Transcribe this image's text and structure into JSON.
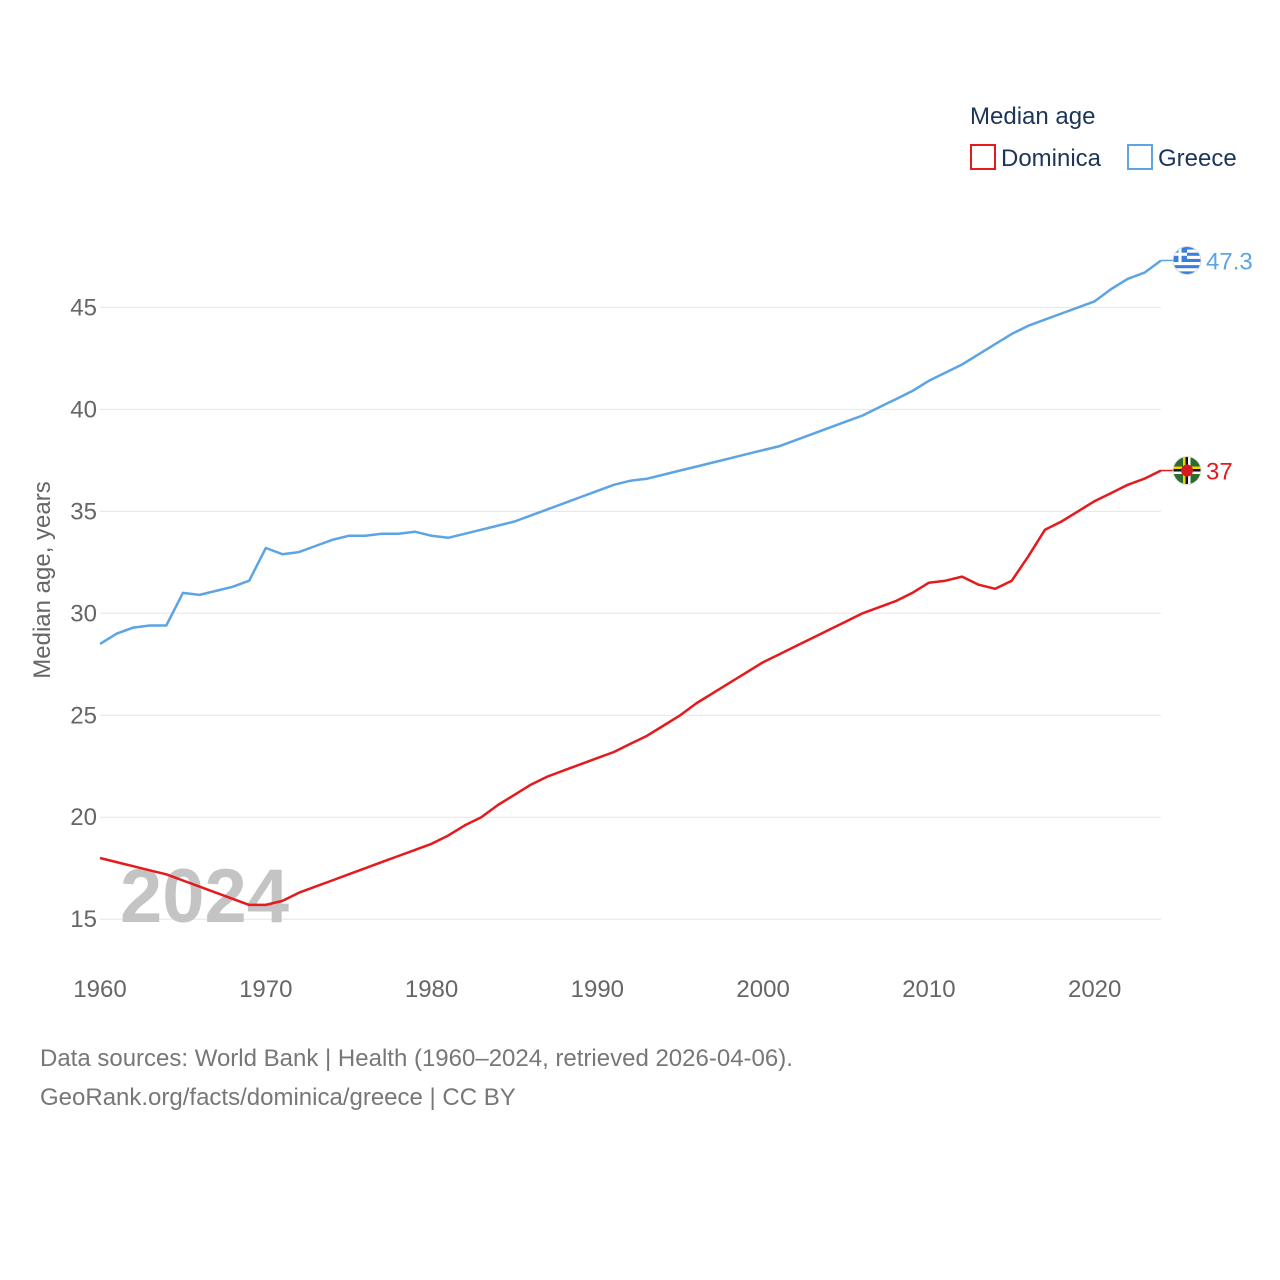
{
  "chart_data": {
    "type": "line",
    "legend_title": "Median age",
    "ylabel": "Median age, years",
    "xlim": [
      1960,
      2024
    ],
    "ylim": [
      13,
      48.5
    ],
    "x_ticks": [
      1960,
      1970,
      1980,
      1990,
      2000,
      2010,
      2020
    ],
    "y_ticks": [
      15,
      20,
      25,
      30,
      35,
      40,
      45
    ],
    "year_label": "2024",
    "x": [
      1960,
      1961,
      1962,
      1963,
      1964,
      1965,
      1966,
      1967,
      1968,
      1969,
      1970,
      1971,
      1972,
      1973,
      1974,
      1975,
      1976,
      1977,
      1978,
      1979,
      1980,
      1981,
      1982,
      1983,
      1984,
      1985,
      1986,
      1987,
      1988,
      1989,
      1990,
      1991,
      1992,
      1993,
      1994,
      1995,
      1996,
      1997,
      1998,
      1999,
      2000,
      2001,
      2002,
      2003,
      2004,
      2005,
      2006,
      2007,
      2008,
      2009,
      2010,
      2011,
      2012,
      2013,
      2014,
      2015,
      2016,
      2017,
      2018,
      2019,
      2020,
      2021,
      2022,
      2023,
      2024
    ],
    "series": [
      {
        "name": "Dominica",
        "color": "#e41a1c",
        "end_label": "37",
        "flag": "dominica-flag",
        "values": [
          18.0,
          17.8,
          17.6,
          17.4,
          17.2,
          16.9,
          16.6,
          16.3,
          16.0,
          15.7,
          15.7,
          15.9,
          16.3,
          16.6,
          16.9,
          17.2,
          17.5,
          17.8,
          18.1,
          18.4,
          18.7,
          19.1,
          19.6,
          20.0,
          20.6,
          21.1,
          21.6,
          22.0,
          22.3,
          22.6,
          22.9,
          23.2,
          23.6,
          24.0,
          24.5,
          25.0,
          25.6,
          26.1,
          26.6,
          27.1,
          27.6,
          28.0,
          28.4,
          28.8,
          29.2,
          29.6,
          30.0,
          30.3,
          30.6,
          31.0,
          31.5,
          31.6,
          31.8,
          31.4,
          31.2,
          31.6,
          32.8,
          34.1,
          34.5,
          35.0,
          35.5,
          35.9,
          36.3,
          36.6,
          37.0
        ]
      },
      {
        "name": "Greece",
        "color": "#5ca4e3",
        "end_label": "47.3",
        "flag": "greece-flag",
        "values": [
          28.5,
          29.0,
          29.3,
          29.4,
          29.4,
          31.0,
          30.9,
          31.1,
          31.3,
          31.6,
          33.2,
          32.9,
          33.0,
          33.3,
          33.6,
          33.8,
          33.8,
          33.9,
          33.9,
          34.0,
          33.8,
          33.7,
          33.9,
          34.1,
          34.3,
          34.5,
          34.8,
          35.1,
          35.4,
          35.7,
          36.0,
          36.3,
          36.5,
          36.6,
          36.8,
          37.0,
          37.2,
          37.4,
          37.6,
          37.8,
          38.0,
          38.2,
          38.5,
          38.8,
          39.1,
          39.4,
          39.7,
          40.1,
          40.5,
          40.9,
          41.4,
          41.8,
          42.2,
          42.7,
          43.2,
          43.7,
          44.1,
          44.4,
          44.7,
          45.0,
          45.3,
          45.9,
          46.4,
          46.7,
          47.3
        ]
      }
    ]
  },
  "footer": {
    "line1": "Data sources: World Bank | Health (1960–2024, retrieved 2026-04-06).",
    "line2": "GeoRank.org/facts/dominica/greece | CC BY"
  }
}
